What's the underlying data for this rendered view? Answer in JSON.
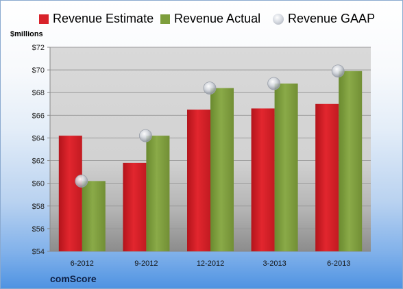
{
  "chart_data": {
    "type": "bar",
    "categories": [
      "6-2012",
      "9-2012",
      "12-2012",
      "3-2013",
      "6-2013"
    ],
    "series": [
      {
        "name": "Revenue Estimate",
        "kind": "bar",
        "color": "#d8222a",
        "values": [
          64.2,
          61.8,
          66.5,
          66.6,
          67.0
        ]
      },
      {
        "name": "Revenue Actual",
        "kind": "bar",
        "color": "#7d9e3c",
        "values": [
          60.2,
          64.2,
          68.4,
          68.8,
          69.9
        ]
      },
      {
        "name": "Revenue GAAP",
        "kind": "marker",
        "color": "#c9ced6",
        "values": [
          60.2,
          64.2,
          68.4,
          68.8,
          69.9
        ]
      }
    ],
    "ylabel": "$millions",
    "ylim": [
      54,
      72
    ],
    "yticks": [
      54,
      56,
      58,
      60,
      62,
      64,
      66,
      68,
      70,
      72
    ],
    "ytick_labels": [
      "$54",
      "$56",
      "$58",
      "$60",
      "$62",
      "$64",
      "$66",
      "$68",
      "$70",
      "$72"
    ],
    "grid": true,
    "legend": "top"
  },
  "source": "comScore"
}
